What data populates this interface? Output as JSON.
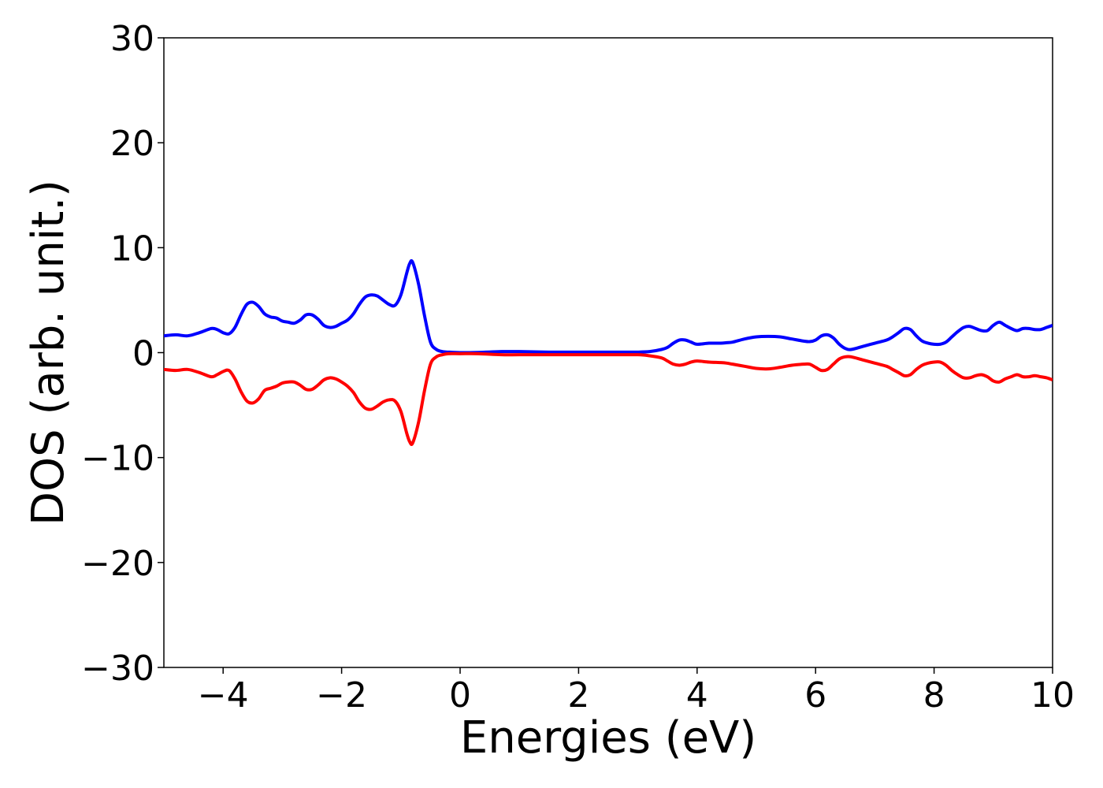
{
  "chart_data": {
    "type": "line",
    "title": "",
    "xlabel": "Energies (eV)",
    "ylabel": "DOS (arb. unit.)",
    "xlim": [
      -5,
      10
    ],
    "ylim": [
      -30,
      30
    ],
    "xticks": [
      -4,
      -2,
      0,
      2,
      4,
      6,
      8,
      10
    ],
    "xtick_labels": [
      "−4",
      "−2",
      "0",
      "2",
      "4",
      "6",
      "8",
      "10"
    ],
    "yticks": [
      -30,
      -20,
      -10,
      0,
      10,
      20,
      30
    ],
    "ytick_labels": [
      "−30",
      "−20",
      "−10",
      "0",
      "10",
      "20",
      "30"
    ],
    "grid": false,
    "legend": "none",
    "series": [
      {
        "color": "#0000ff",
        "x": [
          -5.0,
          -4.8,
          -4.6,
          -4.4,
          -4.2,
          -4.1,
          -4.0,
          -3.9,
          -3.8,
          -3.7,
          -3.6,
          -3.5,
          -3.4,
          -3.3,
          -3.2,
          -3.1,
          -3.0,
          -2.9,
          -2.8,
          -2.7,
          -2.6,
          -2.5,
          -2.4,
          -2.3,
          -2.2,
          -2.1,
          -2.0,
          -1.9,
          -1.8,
          -1.7,
          -1.6,
          -1.5,
          -1.4,
          -1.3,
          -1.2,
          -1.1,
          -1.0,
          -0.9,
          -0.85,
          -0.8,
          -0.7,
          -0.6,
          -0.5,
          -0.4,
          -0.3,
          -0.2,
          0.0,
          0.3,
          0.7,
          1.0,
          1.5,
          2.0,
          2.5,
          3.0,
          3.2,
          3.4,
          3.5,
          3.6,
          3.7,
          3.8,
          3.9,
          4.0,
          4.2,
          4.4,
          4.5,
          4.6,
          4.8,
          5.0,
          5.2,
          5.4,
          5.6,
          5.8,
          5.9,
          6.0,
          6.1,
          6.2,
          6.3,
          6.4,
          6.5,
          6.6,
          6.8,
          7.0,
          7.2,
          7.3,
          7.4,
          7.5,
          7.6,
          7.7,
          7.8,
          7.9,
          8.0,
          8.1,
          8.2,
          8.3,
          8.4,
          8.5,
          8.6,
          8.7,
          8.8,
          8.9,
          9.0,
          9.1,
          9.2,
          9.3,
          9.4,
          9.5,
          9.6,
          9.7,
          9.8,
          9.9,
          10.0
        ],
        "y": [
          1.6,
          1.7,
          1.6,
          1.9,
          2.3,
          2.2,
          1.9,
          1.8,
          2.4,
          3.6,
          4.6,
          4.8,
          4.4,
          3.7,
          3.4,
          3.3,
          3.0,
          2.9,
          2.8,
          3.1,
          3.6,
          3.6,
          3.2,
          2.6,
          2.4,
          2.5,
          2.8,
          3.1,
          3.7,
          4.6,
          5.3,
          5.5,
          5.4,
          5.0,
          4.6,
          4.5,
          5.5,
          7.6,
          8.5,
          8.6,
          6.5,
          3.5,
          1.0,
          0.3,
          0.1,
          0.05,
          0.0,
          0.02,
          0.1,
          0.1,
          0.05,
          0.05,
          0.05,
          0.05,
          0.1,
          0.3,
          0.5,
          0.9,
          1.2,
          1.2,
          1.0,
          0.8,
          0.9,
          0.9,
          0.95,
          1.0,
          1.3,
          1.5,
          1.55,
          1.5,
          1.3,
          1.1,
          1.05,
          1.2,
          1.6,
          1.7,
          1.4,
          0.8,
          0.4,
          0.3,
          0.6,
          0.9,
          1.2,
          1.5,
          1.9,
          2.3,
          2.2,
          1.6,
          1.1,
          0.9,
          0.8,
          0.8,
          1.0,
          1.5,
          2.0,
          2.4,
          2.5,
          2.3,
          2.1,
          2.1,
          2.6,
          2.9,
          2.6,
          2.3,
          2.1,
          2.3,
          2.3,
          2.2,
          2.2,
          2.4,
          2.6
        ]
      },
      {
        "color": "#ff0000",
        "x": [
          -5.0,
          -4.8,
          -4.6,
          -4.4,
          -4.2,
          -4.1,
          -4.0,
          -3.9,
          -3.8,
          -3.7,
          -3.6,
          -3.5,
          -3.4,
          -3.3,
          -3.2,
          -3.1,
          -3.0,
          -2.9,
          -2.8,
          -2.7,
          -2.6,
          -2.5,
          -2.4,
          -2.3,
          -2.2,
          -2.1,
          -2.0,
          -1.9,
          -1.8,
          -1.7,
          -1.6,
          -1.5,
          -1.4,
          -1.3,
          -1.2,
          -1.1,
          -1.0,
          -0.9,
          -0.85,
          -0.8,
          -0.7,
          -0.6,
          -0.5,
          -0.4,
          -0.3,
          -0.2,
          0.0,
          0.3,
          0.7,
          1.0,
          1.5,
          2.0,
          2.5,
          3.0,
          3.2,
          3.4,
          3.5,
          3.6,
          3.7,
          3.8,
          3.9,
          4.0,
          4.2,
          4.4,
          4.5,
          4.6,
          4.8,
          5.0,
          5.2,
          5.4,
          5.6,
          5.8,
          5.9,
          6.0,
          6.1,
          6.2,
          6.3,
          6.4,
          6.5,
          6.6,
          6.8,
          7.0,
          7.2,
          7.3,
          7.4,
          7.5,
          7.6,
          7.7,
          7.8,
          7.9,
          8.0,
          8.1,
          8.2,
          8.3,
          8.4,
          8.5,
          8.6,
          8.7,
          8.8,
          8.9,
          9.0,
          9.1,
          9.2,
          9.3,
          9.4,
          9.5,
          9.6,
          9.7,
          9.8,
          9.9,
          10.0
        ],
        "y": [
          -1.6,
          -1.7,
          -1.6,
          -1.9,
          -2.3,
          -2.1,
          -1.8,
          -1.7,
          -2.5,
          -3.7,
          -4.6,
          -4.8,
          -4.4,
          -3.6,
          -3.4,
          -3.2,
          -2.9,
          -2.8,
          -2.8,
          -3.1,
          -3.5,
          -3.5,
          -3.1,
          -2.6,
          -2.4,
          -2.5,
          -2.8,
          -3.2,
          -3.8,
          -4.7,
          -5.3,
          -5.4,
          -5.1,
          -4.7,
          -4.5,
          -4.6,
          -5.6,
          -7.7,
          -8.5,
          -8.6,
          -6.6,
          -3.6,
          -1.1,
          -0.4,
          -0.2,
          -0.1,
          -0.1,
          -0.1,
          -0.2,
          -0.2,
          -0.2,
          -0.2,
          -0.2,
          -0.2,
          -0.3,
          -0.5,
          -0.8,
          -1.1,
          -1.2,
          -1.1,
          -0.9,
          -0.8,
          -0.9,
          -0.95,
          -1.0,
          -1.1,
          -1.3,
          -1.5,
          -1.55,
          -1.4,
          -1.2,
          -1.1,
          -1.1,
          -1.4,
          -1.7,
          -1.6,
          -1.1,
          -0.6,
          -0.4,
          -0.4,
          -0.7,
          -1.0,
          -1.3,
          -1.6,
          -1.9,
          -2.2,
          -2.1,
          -1.6,
          -1.2,
          -1.0,
          -0.9,
          -0.9,
          -1.2,
          -1.7,
          -2.1,
          -2.4,
          -2.4,
          -2.2,
          -2.1,
          -2.3,
          -2.7,
          -2.8,
          -2.5,
          -2.3,
          -2.1,
          -2.3,
          -2.3,
          -2.2,
          -2.3,
          -2.4,
          -2.6
        ]
      }
    ]
  }
}
